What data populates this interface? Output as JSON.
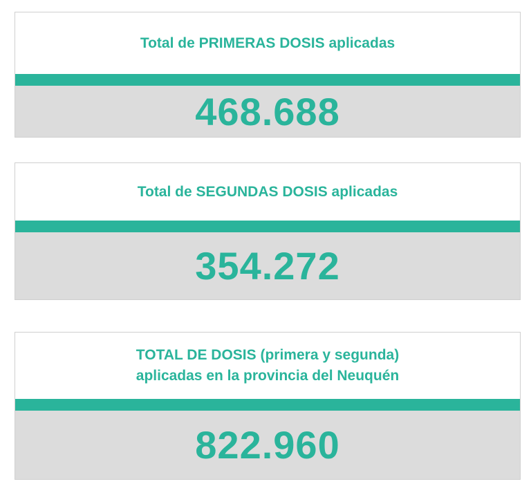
{
  "cards": [
    {
      "title": "Total de PRIMERAS DOSIS aplicadas",
      "value": "468.688"
    },
    {
      "title": "Total de SEGUNDAS DOSIS aplicadas",
      "value": "354.272"
    },
    {
      "title_line1": "TOTAL DE DOSIS (primera y segunda)",
      "title_line2": "aplicadas en la provincia del Neuquén",
      "value": "822.960"
    }
  ],
  "colors": {
    "accent": "#2ab49b",
    "value_background": "#dcdcdc",
    "border": "#cfcfcf"
  }
}
